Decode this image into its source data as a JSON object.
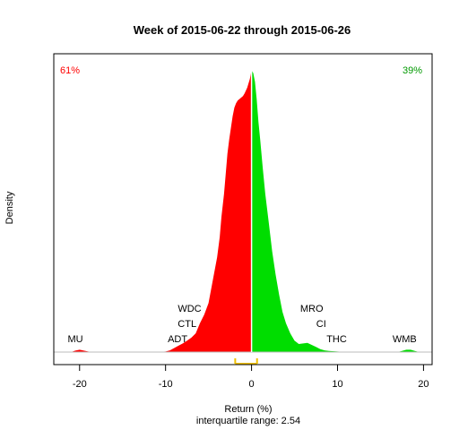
{
  "chart_data": {
    "type": "area",
    "title": "Week of 2015-06-22 through 2015-06-26",
    "xlabel": "Return (%)",
    "ylabel": "Density",
    "subtitle": "interquartile range: 2.54",
    "xlim": [
      -23,
      21
    ],
    "ylim": [
      0,
      1
    ],
    "xticks": [
      -20,
      -10,
      0,
      10,
      20
    ],
    "x_tick_labels": [
      "-20",
      "-10",
      "0",
      "10",
      "20"
    ],
    "negative_share_label": "61%",
    "positive_share_label": "39%",
    "negative_color": "#ff0000",
    "positive_color": "#00dd00",
    "iqr_color": "#f0c000",
    "iqr_range": [
      -1.9,
      0.64
    ],
    "density": {
      "x": [
        -21,
        -20.5,
        -20,
        -19.5,
        -19,
        -18.5,
        -11,
        -10,
        -9.5,
        -9,
        -8.5,
        -8,
        -7.5,
        -7,
        -6.5,
        -6,
        -5.5,
        -5,
        -4.5,
        -4,
        -3.7,
        -3.5,
        -3.2,
        -3,
        -2.8,
        -2.6,
        -2.4,
        -2.2,
        -2,
        -1.8,
        -1.6,
        -1.4,
        -1.2,
        -1,
        -0.8,
        -0.5,
        -0.2,
        0,
        0.2,
        0.4,
        0.6,
        0.8,
        1,
        1.3,
        1.6,
        2,
        2.4,
        2.8,
        3.2,
        3.6,
        4,
        4.5,
        5,
        5.5,
        6,
        6.5,
        7,
        7.5,
        8,
        8.5,
        9,
        10,
        11,
        17,
        17.5,
        18,
        18.5,
        19,
        19.5
      ],
      "y": [
        0,
        0.005,
        0.008,
        0.005,
        0.002,
        0,
        0,
        0.002,
        0.006,
        0.014,
        0.022,
        0.03,
        0.04,
        0.05,
        0.065,
        0.1,
        0.13,
        0.17,
        0.25,
        0.33,
        0.4,
        0.47,
        0.55,
        0.62,
        0.69,
        0.74,
        0.78,
        0.82,
        0.85,
        0.865,
        0.875,
        0.88,
        0.885,
        0.89,
        0.9,
        0.92,
        0.95,
        0.98,
        0.97,
        0.94,
        0.88,
        0.8,
        0.74,
        0.64,
        0.55,
        0.45,
        0.35,
        0.27,
        0.2,
        0.14,
        0.1,
        0.065,
        0.04,
        0.028,
        0.03,
        0.032,
        0.025,
        0.018,
        0.01,
        0.006,
        0.004,
        0.002,
        0,
        0,
        0.004,
        0.008,
        0.008,
        0.004,
        0
      ]
    },
    "annotations": [
      {
        "label": "MU",
        "x": -20.5,
        "level": 0
      },
      {
        "label": "ADT",
        "x": -8.6,
        "level": 0
      },
      {
        "label": "CTL",
        "x": -7.5,
        "level": 1
      },
      {
        "label": "WDC",
        "x": -7.2,
        "level": 2
      },
      {
        "label": "MRO",
        "x": 7.0,
        "level": 2
      },
      {
        "label": "CI",
        "x": 8.1,
        "level": 1
      },
      {
        "label": "THC",
        "x": 9.9,
        "level": 0
      },
      {
        "label": "WMB",
        "x": 17.8,
        "level": 0
      }
    ]
  }
}
